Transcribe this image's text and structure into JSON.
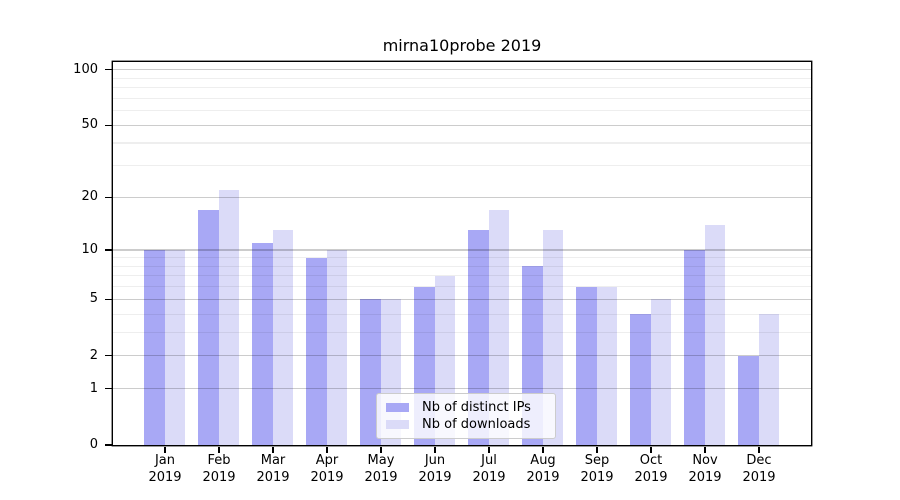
{
  "title": "mirna10probe 2019",
  "chart_data": {
    "type": "bar",
    "title": "mirna10probe 2019",
    "categories": [
      "Jan",
      "Feb",
      "Mar",
      "Apr",
      "May",
      "Jun",
      "Jul",
      "Aug",
      "Sep",
      "Oct",
      "Nov",
      "Dec"
    ],
    "category_year": "2019",
    "series": [
      {
        "name": "Nb of distinct IPs",
        "color": "#a8a8f5",
        "values": [
          10,
          17,
          11,
          9,
          5,
          6,
          13,
          8,
          6,
          4,
          10,
          2
        ]
      },
      {
        "name": "Nb of downloads",
        "color": "#dbdbf8",
        "values": [
          10,
          22,
          13,
          10,
          5,
          7,
          17,
          13,
          6,
          5,
          14,
          4
        ]
      }
    ],
    "xlabel": "",
    "ylabel": "",
    "yscale": "log1p",
    "ylim": [
      0,
      110
    ],
    "yticks": [
      0,
      1,
      2,
      5,
      10,
      20,
      50,
      100
    ],
    "yticks_minor": [
      3,
      4,
      6,
      7,
      8,
      9,
      30,
      40,
      60,
      70,
      80,
      90
    ],
    "grid": true,
    "legend_position": "lower-center-inside"
  },
  "colors": {
    "bar_distinct_ips": "#a8a8f5",
    "bar_downloads": "#dbdbf8",
    "grid_major": "#cccccc",
    "grid_minor": "#ededed",
    "axis": "#000000",
    "background": "#ffffff"
  }
}
